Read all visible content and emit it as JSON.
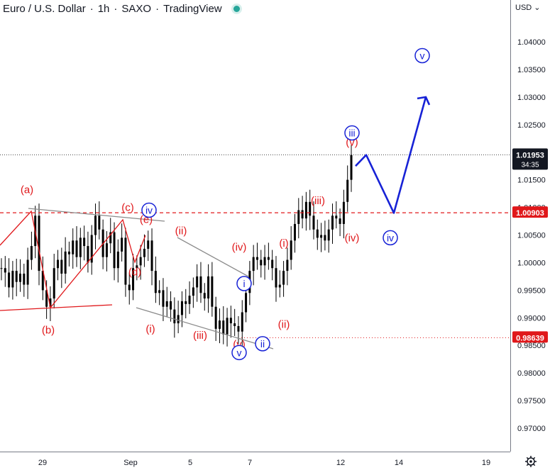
{
  "header": {
    "symbol": "Euro / U.S. Dollar",
    "sep": "·",
    "interval": "1h",
    "exchange": "SAXO",
    "source": "TradingView"
  },
  "currency_button": "USD ⌄",
  "colors": {
    "red": "#e0181b",
    "blue": "#1722d6",
    "grey": "#8a8a8a",
    "candle": "#000000",
    "axis_text": "#131722"
  },
  "chart_data": {
    "type": "candlestick",
    "ylim": [
      0.965,
      1.047
    ],
    "y_ticks": [
      "1.04000",
      "1.03500",
      "1.03000",
      "1.02500",
      "1.02000",
      "1.01500",
      "1.01000",
      "1.00500",
      "1.00000",
      "0.99500",
      "0.99000",
      "0.98500",
      "0.98000",
      "0.97500",
      "0.97000"
    ],
    "x_ticks": [
      "29",
      "Sep",
      "5",
      "7",
      "12",
      "14",
      "19"
    ],
    "price_labels": [
      {
        "label": "1.01953",
        "sub": "34:35",
        "value": 1.01953,
        "style": "dark"
      },
      {
        "label": "1.00903",
        "value": 1.00903,
        "style": "red"
      },
      {
        "label": "0.98639",
        "value": 0.98639,
        "style": "red"
      }
    ],
    "series": [
      {
        "values": [
          0.999,
          0.9982,
          0.9955,
          0.9985,
          0.9965,
          0.998,
          0.996,
          1.0005,
          1.003,
          1.0085,
          0.9985,
          0.995,
          0.992,
          0.9935,
          0.999,
          1.0005,
          0.998,
          1.002,
          1.0015,
          1.004,
          1.001,
          1.0045,
          1.003,
          1.0,
          1.005,
          1.0085,
          1.006,
          1.001,
          1.0035,
          1.0055,
          0.999,
          1.002,
          1.0045,
          0.996,
          0.995,
          0.999,
          0.9995,
          1.001,
          1.0025,
          1.004,
          0.9985,
          0.9945,
          0.995,
          0.992,
          0.993,
          0.9915,
          0.989,
          0.9905,
          0.993,
          0.9925,
          0.994,
          0.9955,
          0.9975,
          0.9945,
          0.9935,
          0.9975,
          0.992,
          0.988,
          0.9895,
          0.987,
          0.99,
          0.989,
          0.9885,
          0.9875,
          0.991,
          0.9945,
          0.9985,
          1.001,
          1.0005,
          0.9995,
          1.001,
          1.0005,
          0.999,
          0.9955,
          0.996,
          0.9985,
          1.0005,
          1.004,
          1.007,
          1.0095,
          1.008,
          1.011,
          1.0085,
          1.006,
          1.0045,
          1.005,
          1.004,
          1.006,
          1.0085,
          1.008,
          1.007,
          1.011,
          1.015,
          1.0195
        ]
      }
    ],
    "annotations": {
      "red": [
        {
          "text": "(a)",
          "x": "Aug 28",
          "y": 1.0132
        },
        {
          "text": "(b)",
          "x": "Aug 29",
          "y": 0.9878
        },
        {
          "text": "(c)",
          "x": "Sep 1",
          "y": 1.01
        },
        {
          "text": "(d)",
          "x": "Sep 1",
          "y": 0.9983
        },
        {
          "text": "(e)",
          "x": "Sep 1",
          "y": 1.0078
        },
        {
          "text": "(i)",
          "x": "Sep 2",
          "y": 0.988
        },
        {
          "text": "(ii)",
          "x": "Sep 4",
          "y": 1.0058
        },
        {
          "text": "(iii)",
          "x": "Sep 5",
          "y": 0.9868
        },
        {
          "text": "(iv)",
          "x": "Sep 6",
          "y": 1.0028
        },
        {
          "text": "(v)",
          "x": "Sep 6",
          "y": 0.9852
        },
        {
          "text": "(i)",
          "x": "Sep 8",
          "y": 1.0035
        },
        {
          "text": "(ii)",
          "x": "Sep 8",
          "y": 0.9888
        },
        {
          "text": "(iii)",
          "x": "Sep 9",
          "y": 1.0112
        },
        {
          "text": "(iv)",
          "x": "Sep 12",
          "y": 1.0045
        },
        {
          "text": "(v)",
          "x": "Sep 12",
          "y": 1.0218
        }
      ],
      "blue": [
        {
          "text": "iv",
          "x": "Sep 1",
          "y": 1.0095
        },
        {
          "text": "i",
          "x": "Sep 6",
          "y": 0.9962
        },
        {
          "text": "ii",
          "x": "Sep 7",
          "y": 0.9853
        },
        {
          "text": "v",
          "x": "Sep 6",
          "y": 0.9837
        },
        {
          "text": "iii",
          "x": "Sep 12",
          "y": 1.0235
        },
        {
          "text": "iv",
          "x": "Sep 13",
          "y": 1.0045
        },
        {
          "text": "v",
          "x": "Sep 15",
          "y": 1.0375
        }
      ]
    },
    "projection": {
      "x": [
        "Sep 12",
        "Sep 12",
        "Sep 13",
        "Sep 15"
      ],
      "y": [
        1.0175,
        1.0195,
        1.009,
        1.03
      ]
    }
  }
}
